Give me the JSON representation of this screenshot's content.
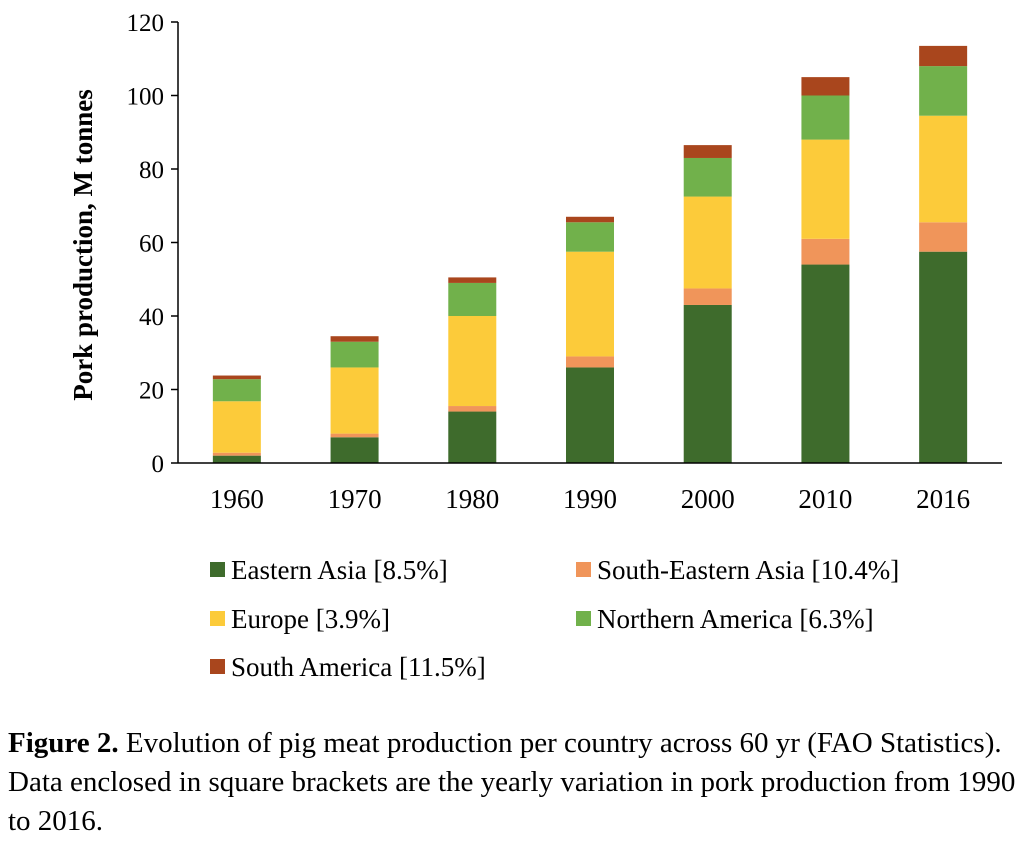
{
  "chart_data": {
    "type": "bar",
    "stacked": true,
    "categories": [
      "1960",
      "1970",
      "1980",
      "1990",
      "2000",
      "2010",
      "2016"
    ],
    "ylabel": "Pork production, M tonnes",
    "xlabel": "",
    "ylim": [
      0,
      120
    ],
    "yticks": [
      0,
      20,
      40,
      60,
      80,
      100,
      120
    ],
    "grid": false,
    "legend_position": "bottom",
    "series": [
      {
        "name": "Eastern Asia [8.5%]",
        "color": "#3e6b2c",
        "values": [
          2,
          7,
          14,
          26,
          43,
          54,
          57.5
        ]
      },
      {
        "name": "South-Eastern Asia [10.4%]",
        "color": "#f0955a",
        "values": [
          0.8,
          1,
          1.5,
          3,
          4.5,
          7,
          8
        ]
      },
      {
        "name": "Europe [3.9%]",
        "color": "#fccb3a",
        "values": [
          14,
          18,
          24.5,
          28.5,
          25,
          27,
          29
        ]
      },
      {
        "name": "Northern America [6.3%]",
        "color": "#71b14b",
        "values": [
          6,
          7,
          9,
          8,
          10.5,
          12,
          13.5
        ]
      },
      {
        "name": "South America [11.5%]",
        "color": "#a9461d",
        "values": [
          1,
          1.5,
          1.5,
          1.5,
          3.5,
          5,
          5.5
        ]
      }
    ]
  },
  "caption": {
    "label": "Figure 2.",
    "text": " Evolution of pig meat production per country across 60 yr (FAO Statistics). Data enclosed in square brackets are the yearly variation in pork production from 1990 to 2016."
  }
}
